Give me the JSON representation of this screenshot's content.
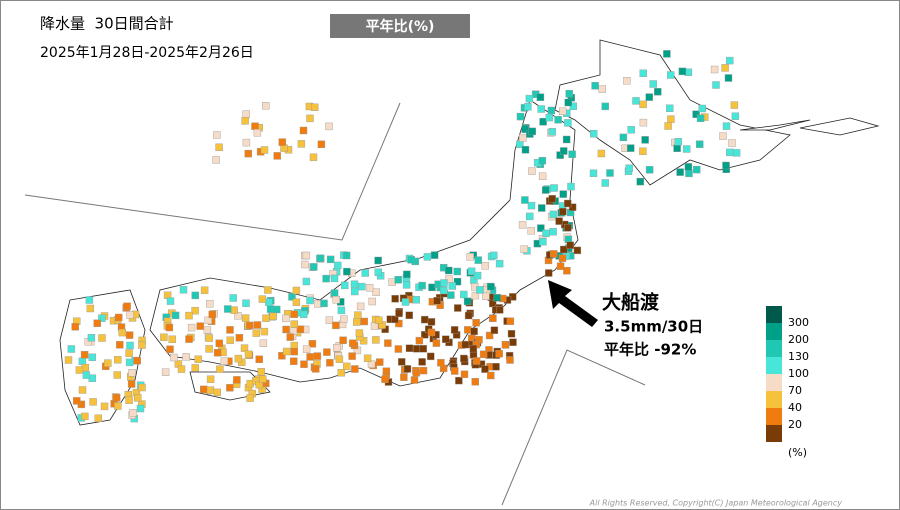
{
  "header": {
    "title": "降水量  30日間合計",
    "period": "2025年1月28日-2025年2月26日",
    "tab": "平年比(%)"
  },
  "annotation": {
    "place": "大船渡",
    "amount": "3.5mm/30日",
    "ratio": "平年比 -92%"
  },
  "legend": {
    "colors": [
      "#00594a",
      "#00a088",
      "#20c8b4",
      "#48e6d8",
      "#f6dcc6",
      "#f6c23e",
      "#f07c10",
      "#7a3c06"
    ],
    "labels": [
      300,
      200,
      130,
      100,
      70,
      40,
      20
    ],
    "unit": "(%)"
  },
  "footer": {
    "copyright": "All Rights Reserved, Copyright(C) Japan Meteorological Agency"
  }
}
